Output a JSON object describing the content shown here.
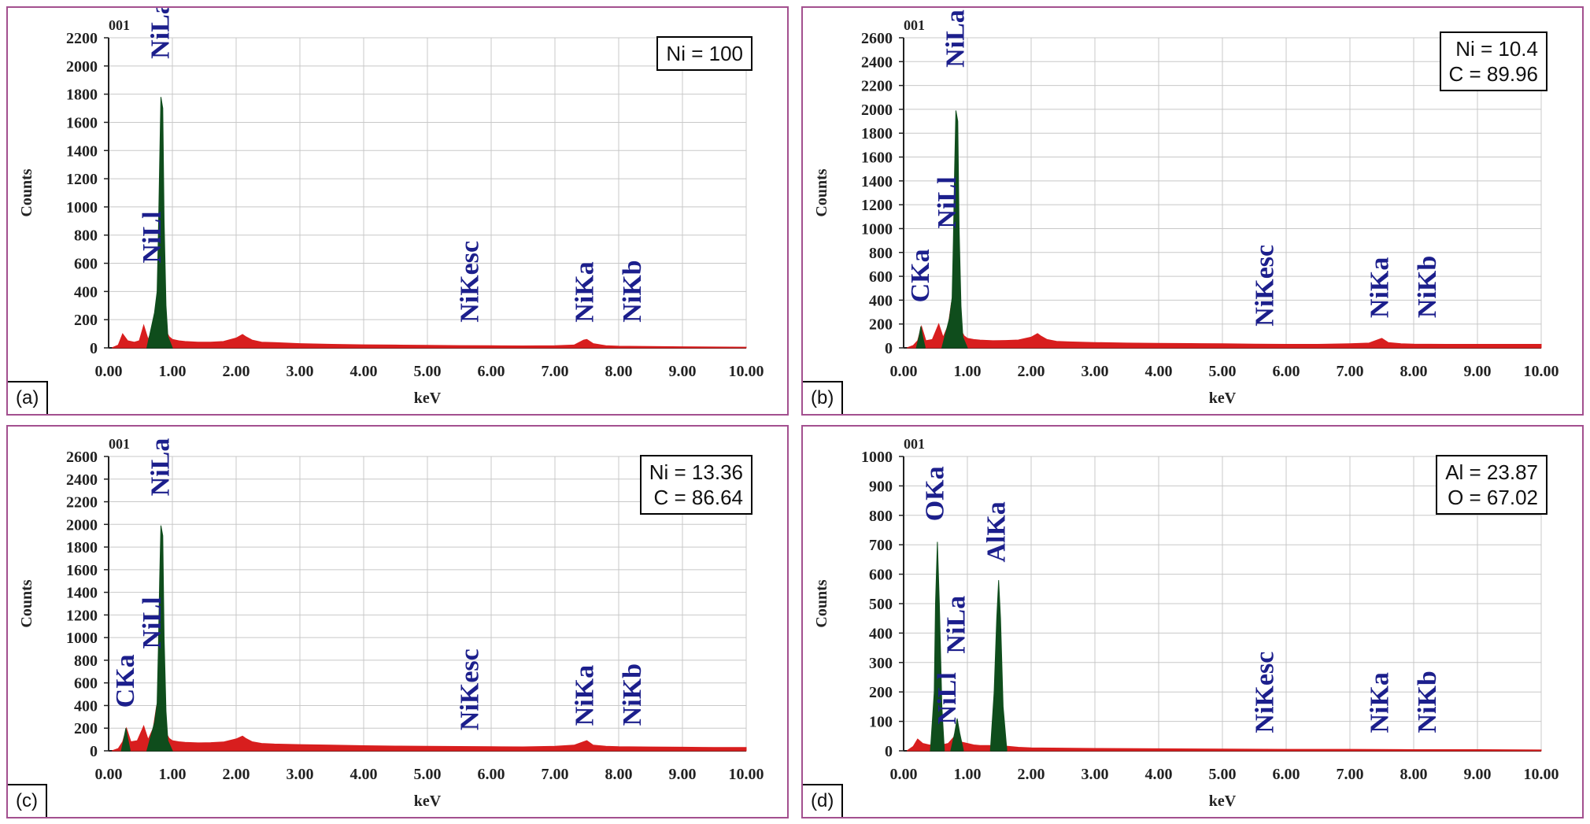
{
  "chart_data": [
    {
      "type": "area",
      "panel_label": "(a)",
      "spectrum_label": "001",
      "xlabel": "keV",
      "ylabel": "Counts",
      "xlim": [
        0,
        10
      ],
      "ylim": [
        0,
        2200
      ],
      "x_ticks": [
        "0.00",
        "1.00",
        "2.00",
        "3.00",
        "4.00",
        "5.00",
        "6.00",
        "7.00",
        "8.00",
        "9.00",
        "10.00"
      ],
      "y_ticks": [
        "0",
        "200",
        "400",
        "600",
        "800",
        "1000",
        "1200",
        "1400",
        "1600",
        "1800",
        "2000",
        "2200"
      ],
      "composition": [
        "Ni = 100"
      ],
      "series": [
        {
          "name": "",
          "color": "#d81e1e",
          "x": [
            0.05,
            0.15,
            0.22,
            0.3,
            0.4,
            0.48,
            0.55,
            0.62,
            0.7,
            0.75,
            0.8,
            0.85,
            0.9,
            0.95,
            1.0,
            1.1,
            1.2,
            1.4,
            1.6,
            1.8,
            2.0,
            2.1,
            2.15,
            2.25,
            2.4,
            2.6,
            3.0,
            3.5,
            4.0,
            4.5,
            5.0,
            5.5,
            6.0,
            6.5,
            7.0,
            7.3,
            7.45,
            7.5,
            7.6,
            7.8,
            8.0,
            8.5,
            9.0,
            9.5,
            10.0
          ],
          "y": [
            0,
            20,
            100,
            50,
            40,
            50,
            160,
            60,
            150,
            300,
            250,
            200,
            120,
            80,
            60,
            50,
            45,
            40,
            40,
            45,
            70,
            95,
            80,
            55,
            40,
            38,
            30,
            25,
            22,
            20,
            18,
            16,
            15,
            14,
            15,
            20,
            55,
            60,
            30,
            15,
            12,
            10,
            8,
            6,
            5
          ]
        },
        {
          "name": "",
          "color": "#0f4d1c",
          "x": [
            0.6,
            0.72,
            0.76,
            0.78,
            0.8,
            0.82,
            0.85,
            0.87,
            0.9,
            0.93,
            1.0
          ],
          "y": [
            0,
            250,
            400,
            800,
            1300,
            1780,
            1700,
            900,
            300,
            80,
            0
          ]
        }
      ],
      "annotations": [
        {
          "text": "NiLa",
          "x": 0.85,
          "y": 2050
        },
        {
          "text": "NiLl",
          "x": 0.72,
          "y": 600
        },
        {
          "text": "NiKesc",
          "x": 5.7,
          "y": 180
        },
        {
          "text": "NiKa",
          "x": 7.5,
          "y": 180
        },
        {
          "text": "NiKb",
          "x": 8.25,
          "y": 180
        }
      ]
    },
    {
      "type": "area",
      "panel_label": "(b)",
      "spectrum_label": "001",
      "xlabel": "keV",
      "ylabel": "Counts",
      "xlim": [
        0,
        10
      ],
      "ylim": [
        0,
        2600
      ],
      "x_ticks": [
        "0.00",
        "1.00",
        "2.00",
        "3.00",
        "4.00",
        "5.00",
        "6.00",
        "7.00",
        "8.00",
        "9.00",
        "10.00"
      ],
      "y_ticks": [
        "0",
        "200",
        "400",
        "600",
        "800",
        "1000",
        "1200",
        "1400",
        "1600",
        "1800",
        "2000",
        "2200",
        "2400",
        "2600"
      ],
      "composition": [
        "Ni = 10.4",
        "C = 89.96"
      ],
      "series": [
        {
          "name": "",
          "color": "#d81e1e",
          "x": [
            0.05,
            0.15,
            0.22,
            0.28,
            0.35,
            0.45,
            0.55,
            0.62,
            0.7,
            0.75,
            0.8,
            0.85,
            0.9,
            0.95,
            1.0,
            1.1,
            1.2,
            1.4,
            1.6,
            1.8,
            2.0,
            2.1,
            2.15,
            2.25,
            2.4,
            2.6,
            3.0,
            3.5,
            4.0,
            4.5,
            5.0,
            5.5,
            6.0,
            6.5,
            7.0,
            7.3,
            7.45,
            7.5,
            7.6,
            7.8,
            8.0,
            8.5,
            9.0,
            9.5,
            10.0
          ],
          "y": [
            0,
            20,
            60,
            180,
            60,
            70,
            200,
            90,
            190,
            380,
            300,
            260,
            150,
            100,
            80,
            70,
            65,
            60,
            62,
            66,
            90,
            120,
            100,
            70,
            55,
            50,
            45,
            40,
            38,
            36,
            34,
            32,
            30,
            30,
            34,
            40,
            70,
            80,
            45,
            35,
            32,
            30,
            30,
            30,
            30
          ]
        },
        {
          "name": "",
          "color": "#0f4d1c",
          "x": [
            0.6,
            0.72,
            0.76,
            0.78,
            0.8,
            0.82,
            0.85,
            0.87,
            0.9,
            0.93,
            1.0
          ],
          "y": [
            0,
            250,
            420,
            900,
            1500,
            1990,
            1900,
            1000,
            350,
            90,
            0
          ]
        },
        {
          "name": "",
          "color": "#0f4d1c",
          "x": [
            0.2,
            0.24,
            0.27,
            0.3,
            0.34
          ],
          "y": [
            0,
            90,
            180,
            90,
            0
          ]
        }
      ],
      "annotations": [
        {
          "text": "NiLa",
          "x": 0.85,
          "y": 2350
        },
        {
          "text": "NiLl",
          "x": 0.72,
          "y": 1000
        },
        {
          "text": "CKa",
          "x": 0.3,
          "y": 380
        },
        {
          "text": "NiKesc",
          "x": 5.7,
          "y": 180
        },
        {
          "text": "NiKa",
          "x": 7.5,
          "y": 250
        },
        {
          "text": "NiKb",
          "x": 8.25,
          "y": 250
        }
      ]
    },
    {
      "type": "area",
      "panel_label": "(c)",
      "spectrum_label": "001",
      "xlabel": "keV",
      "ylabel": "Counts",
      "xlim": [
        0,
        10
      ],
      "ylim": [
        0,
        2600
      ],
      "x_ticks": [
        "0.00",
        "1.00",
        "2.00",
        "3.00",
        "4.00",
        "5.00",
        "6.00",
        "7.00",
        "8.00",
        "9.00",
        "10.00"
      ],
      "y_ticks": [
        "0",
        "200",
        "400",
        "600",
        "800",
        "1000",
        "1200",
        "1400",
        "1600",
        "1800",
        "2000",
        "2200",
        "2400",
        "2600"
      ],
      "composition": [
        "Ni = 13.36",
        "C = 86.64"
      ],
      "series": [
        {
          "name": "",
          "color": "#d81e1e",
          "x": [
            0.05,
            0.15,
            0.22,
            0.28,
            0.35,
            0.45,
            0.55,
            0.62,
            0.7,
            0.75,
            0.8,
            0.85,
            0.9,
            0.95,
            1.0,
            1.1,
            1.2,
            1.4,
            1.6,
            1.8,
            2.0,
            2.1,
            2.15,
            2.25,
            2.4,
            2.6,
            3.0,
            3.5,
            4.0,
            4.5,
            5.0,
            5.5,
            6.0,
            6.5,
            7.0,
            7.3,
            7.45,
            7.5,
            7.6,
            7.8,
            8.0,
            8.5,
            9.0,
            9.5,
            10.0
          ],
          "y": [
            0,
            20,
            80,
            200,
            80,
            90,
            220,
            100,
            200,
            390,
            320,
            270,
            160,
            110,
            90,
            80,
            75,
            70,
            72,
            78,
            105,
            130,
            110,
            80,
            65,
            60,
            55,
            50,
            45,
            42,
            40,
            38,
            36,
            35,
            40,
            50,
            80,
            90,
            50,
            40,
            36,
            34,
            32,
            30,
            30
          ]
        },
        {
          "name": "",
          "color": "#0f4d1c",
          "x": [
            0.6,
            0.72,
            0.76,
            0.78,
            0.8,
            0.82,
            0.85,
            0.87,
            0.9,
            0.93,
            1.0
          ],
          "y": [
            0,
            250,
            420,
            900,
            1500,
            1990,
            1900,
            1000,
            350,
            90,
            0
          ]
        },
        {
          "name": "",
          "color": "#0f4d1c",
          "x": [
            0.2,
            0.24,
            0.27,
            0.3,
            0.34
          ],
          "y": [
            0,
            110,
            200,
            110,
            0
          ]
        }
      ],
      "annotations": [
        {
          "text": "NiLa",
          "x": 0.85,
          "y": 2250
        },
        {
          "text": "NiLl",
          "x": 0.72,
          "y": 900
        },
        {
          "text": "CKa",
          "x": 0.3,
          "y": 380
        },
        {
          "text": "NiKesc",
          "x": 5.7,
          "y": 180
        },
        {
          "text": "NiKa",
          "x": 7.5,
          "y": 220
        },
        {
          "text": "NiKb",
          "x": 8.25,
          "y": 220
        }
      ]
    },
    {
      "type": "area",
      "panel_label": "(d)",
      "spectrum_label": "001",
      "xlabel": "keV",
      "ylabel": "Counts",
      "xlim": [
        0,
        10
      ],
      "ylim": [
        0,
        1000
      ],
      "x_ticks": [
        "0.00",
        "1.00",
        "2.00",
        "3.00",
        "4.00",
        "5.00",
        "6.00",
        "7.00",
        "8.00",
        "9.00",
        "10.00"
      ],
      "y_ticks": [
        "0",
        "100",
        "200",
        "300",
        "400",
        "500",
        "600",
        "700",
        "800",
        "900",
        "1000"
      ],
      "composition": [
        "Al = 23.87",
        "O = 67.02"
      ],
      "series": [
        {
          "name": "",
          "color": "#d81e1e",
          "x": [
            0.05,
            0.15,
            0.22,
            0.3,
            0.4,
            0.6,
            0.7,
            0.8,
            0.9,
            1.0,
            1.1,
            1.2,
            1.3,
            1.4,
            1.6,
            1.7,
            1.8,
            2.0,
            2.5,
            3.0,
            4.0,
            5.0,
            6.0,
            7.0,
            8.0,
            9.0,
            10.0
          ],
          "y": [
            0,
            15,
            40,
            25,
            20,
            20,
            25,
            50,
            30,
            25,
            20,
            18,
            18,
            18,
            16,
            14,
            12,
            10,
            9,
            8,
            7,
            6,
            5,
            5,
            4,
            4,
            3
          ]
        },
        {
          "name": "",
          "color": "#0f4d1c",
          "x": [
            0.42,
            0.48,
            0.5,
            0.53,
            0.56,
            0.6,
            0.64
          ],
          "y": [
            0,
            200,
            500,
            710,
            500,
            150,
            0
          ]
        },
        {
          "name": "",
          "color": "#0f4d1c",
          "x": [
            0.74,
            0.8,
            0.84,
            0.88,
            0.94
          ],
          "y": [
            0,
            60,
            110,
            60,
            0
          ]
        },
        {
          "name": "",
          "color": "#0f4d1c",
          "x": [
            1.36,
            1.42,
            1.46,
            1.49,
            1.52,
            1.56,
            1.62
          ],
          "y": [
            0,
            200,
            450,
            580,
            450,
            150,
            0
          ]
        }
      ],
      "annotations": [
        {
          "text": "OKa",
          "x": 0.53,
          "y": 780
        },
        {
          "text": "AlKa",
          "x": 1.49,
          "y": 640
        },
        {
          "text": "NiLa",
          "x": 0.86,
          "y": 330
        },
        {
          "text": "NiLl",
          "x": 0.72,
          "y": 90
        },
        {
          "text": "NiKesc",
          "x": 5.7,
          "y": 60
        },
        {
          "text": "NiKa",
          "x": 7.5,
          "y": 60
        },
        {
          "text": "NiKb",
          "x": 8.25,
          "y": 60
        }
      ]
    }
  ]
}
